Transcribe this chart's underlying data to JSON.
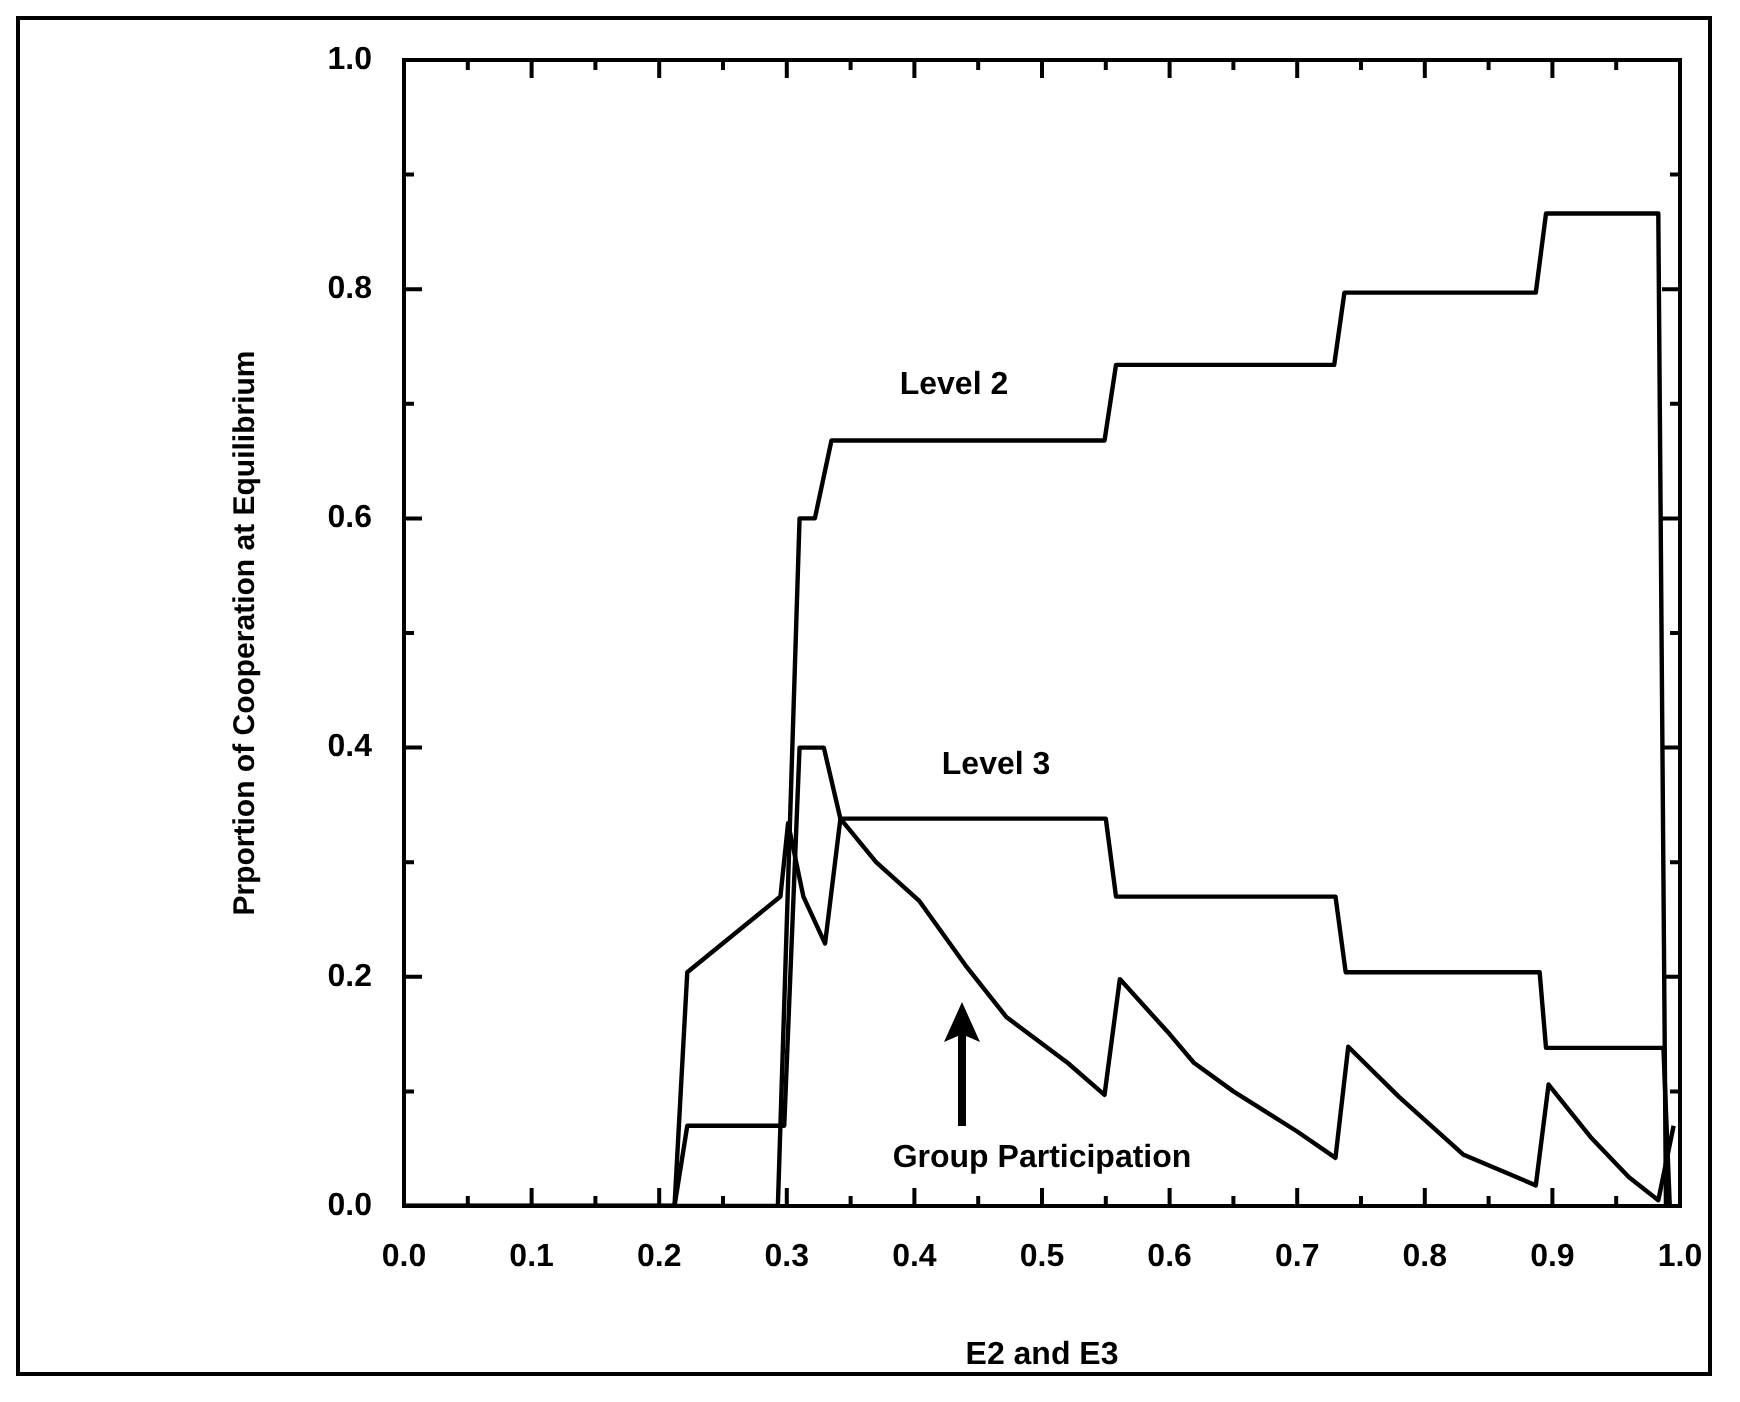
{
  "chart_data": {
    "type": "line",
    "xlabel": "E2 and E3",
    "ylabel": "Prportion of Cooperation at Equilibrium",
    "xlim": [
      0,
      1
    ],
    "ylim": [
      0,
      1
    ],
    "xticks": [
      {
        "value": 0,
        "label": "0.0"
      },
      {
        "value": 0.05,
        "label": null
      },
      0.1,
      {
        "value": 0.15,
        "label": null
      },
      0.2,
      {
        "value": 0.25,
        "label": null
      },
      0.3,
      {
        "value": 0.35,
        "label": null
      },
      0.4,
      {
        "value": 0.45,
        "label": null
      },
      0.5,
      {
        "value": 0.55,
        "label": null
      },
      0.6,
      {
        "value": 0.65,
        "label": null
      },
      0.7,
      {
        "value": 0.75,
        "label": null
      },
      0.8,
      {
        "value": 0.85,
        "label": null
      },
      0.9,
      {
        "value": 0.95,
        "label": null
      },
      {
        "value": 1,
        "label": "1.0"
      }
    ],
    "yticks": [
      {
        "value": 0,
        "label": "0.0"
      },
      {
        "value": 0.1,
        "label": null
      },
      0.2,
      {
        "value": 0.3,
        "label": null
      },
      0.4,
      {
        "value": 0.5,
        "label": null
      },
      0.6,
      {
        "value": 0.7,
        "label": null
      },
      0.8,
      {
        "value": 0.9,
        "label": null
      },
      {
        "value": 1,
        "label": "1.0"
      }
    ],
    "grid": false,
    "legend": false,
    "marker": "none",
    "series": [
      {
        "color": "#000000",
        "x": [
          0,
          0.293,
          0.31,
          0.322,
          0.335,
          0.549,
          0.558,
          0.729,
          0.737,
          0.887,
          0.895,
          0.983,
          0.989
        ],
        "values": [
          0,
          0,
          0.6,
          0.6,
          0.668,
          0.668,
          0.734,
          0.734,
          0.797,
          0.797,
          0.866,
          0.866,
          0
        ]
      },
      {
        "color": "#000000",
        "x": [
          0,
          0.212,
          0.222,
          0.298,
          0.31,
          0.329,
          0.342,
          0.55,
          0.558,
          0.73,
          0.738,
          0.89,
          0.895,
          0.987,
          0.992
        ],
        "values": [
          0,
          0,
          0.07,
          0.07,
          0.4,
          0.4,
          0.338,
          0.338,
          0.27,
          0.27,
          0.204,
          0.204,
          0.138,
          0.138,
          0
        ]
      },
      {
        "color": "#000000",
        "x": [
          0,
          0.212,
          0.222,
          0.295,
          0.301,
          0.313,
          0.33,
          0.342,
          0.37,
          0.404,
          0.44,
          0.472,
          0.52,
          0.549,
          0.561,
          0.6,
          0.619,
          0.65,
          0.7,
          0.73,
          0.74,
          0.78,
          0.83,
          0.887,
          0.897,
          0.93,
          0.96,
          0.983,
          0.995
        ],
        "values": [
          0,
          0,
          0.204,
          0.27,
          0.334,
          0.27,
          0.229,
          0.338,
          0.3,
          0.266,
          0.21,
          0.165,
          0.125,
          0.097,
          0.198,
          0.15,
          0.125,
          0.1,
          0.065,
          0.042,
          0.139,
          0.095,
          0.045,
          0.018,
          0.106,
          0.06,
          0.025,
          0.005,
          0.07
        ]
      }
    ],
    "annotations": [
      "Level 2",
      "Level 3",
      "Group Participation"
    ]
  }
}
